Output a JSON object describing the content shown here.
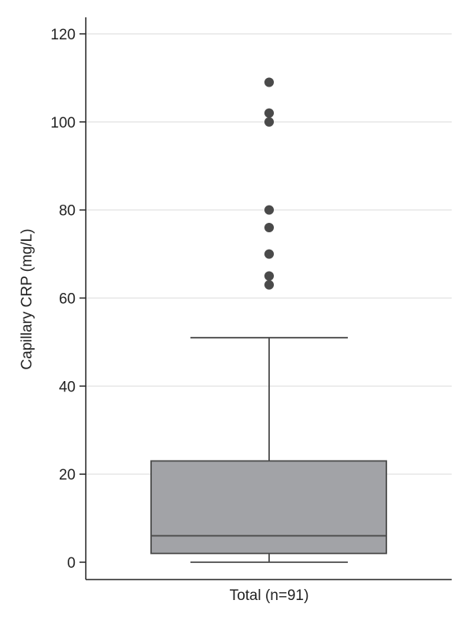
{
  "chart_data": {
    "type": "box",
    "title": "",
    "ylabel": "Capillary CRP (mg/L)",
    "category": "Total (n=91)",
    "ylim": [
      0,
      120
    ],
    "yticks": [
      0,
      20,
      40,
      60,
      80,
      100,
      120
    ],
    "grid": true,
    "box": {
      "whisker_low": 0,
      "q1": 2,
      "median": 6,
      "q3": 23,
      "whisker_high": 51
    },
    "outliers": [
      63,
      65,
      70,
      76,
      80,
      100,
      102,
      109
    ],
    "colors": {
      "box_fill": "#a2a3a7",
      "box_stroke": "#4a4a4a",
      "outlier": "#4a4a4a",
      "grid": "#e6e6e6",
      "axis": "#222222"
    }
  }
}
